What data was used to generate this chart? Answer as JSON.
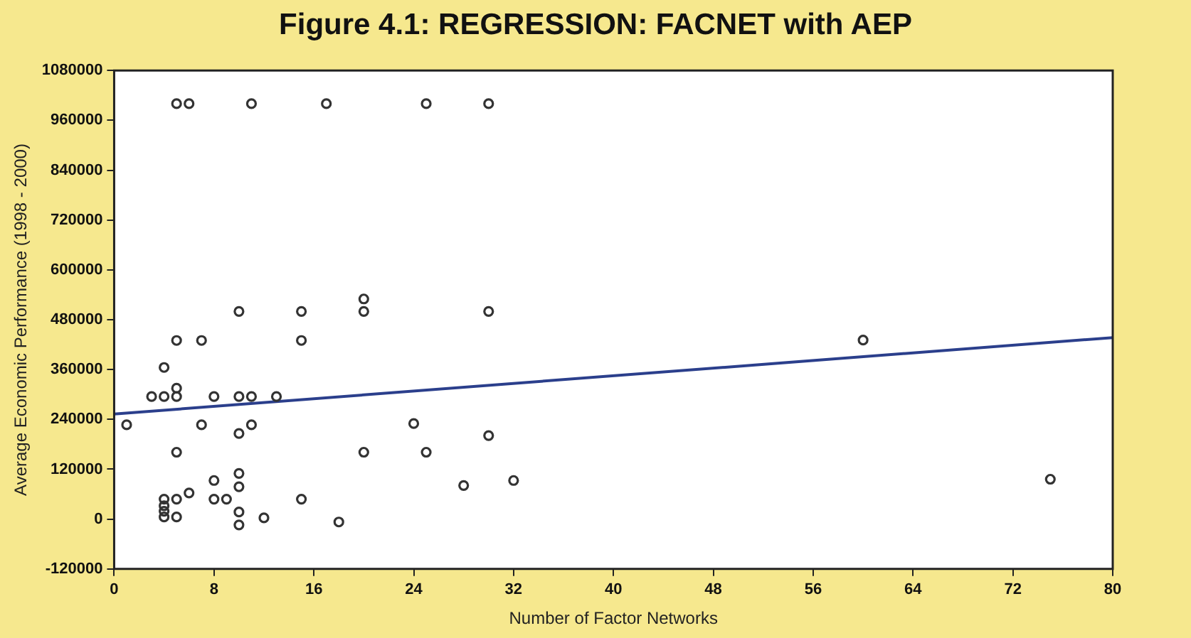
{
  "chart_data": {
    "type": "scatter",
    "title": "Figure 4.1: REGRESSION: FACNET with AEP",
    "xlabel": "Number of Factor Networks",
    "ylabel": "Average Economic Performance (1998 - 2000)",
    "xlim": [
      0,
      80
    ],
    "xticks": [
      0,
      8,
      16,
      24,
      32,
      40,
      48,
      56,
      64,
      72,
      80
    ],
    "ylim": [
      -120000,
      1080000
    ],
    "yticks": [
      -120000,
      0,
      120000,
      240000,
      360000,
      480000,
      600000,
      720000,
      840000,
      960000,
      1080000
    ],
    "grid": false,
    "legend": false,
    "marker": "circle",
    "series": [
      {
        "type": "scatter",
        "color": "#333333",
        "x": [
          5,
          6,
          11,
          17,
          25,
          30,
          10,
          15,
          20,
          20,
          30,
          5,
          7,
          15,
          4,
          3,
          4,
          5,
          5,
          8,
          10,
          11,
          13,
          1,
          7,
          10,
          11,
          24,
          30,
          5,
          20,
          25,
          8,
          10,
          10,
          28,
          32,
          6,
          4,
          5,
          8,
          9,
          15,
          4,
          4,
          4,
          5,
          10,
          10,
          12,
          18,
          60,
          75
        ],
        "values": [
          1000000,
          1000000,
          1000000,
          1000000,
          1000000,
          1000000,
          500000,
          500000,
          500000,
          530000,
          500000,
          430000,
          430000,
          430000,
          365000,
          295000,
          295000,
          315000,
          295000,
          295000,
          295000,
          295000,
          295000,
          227000,
          227000,
          206000,
          227000,
          230000,
          201000,
          161000,
          161000,
          161000,
          93000,
          110000,
          78000,
          81000,
          93000,
          63000,
          48000,
          48000,
          48000,
          48000,
          48000,
          32000,
          19000,
          5000,
          5000,
          17000,
          -14000,
          3000,
          -7000,
          431000,
          96000
        ]
      },
      {
        "type": "line",
        "color": "#2b3f8c",
        "marker": "none",
        "x": [
          0,
          80
        ],
        "values": [
          253000,
          437000
        ]
      }
    ]
  }
}
